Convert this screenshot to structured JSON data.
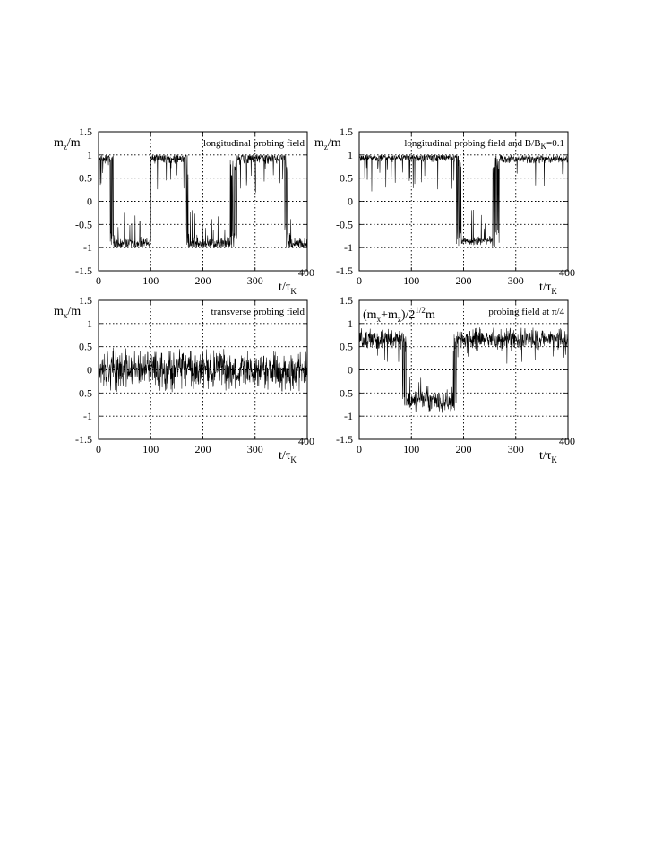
{
  "chart_data": [
    {
      "type": "line",
      "panel_label": "longitudinal probing field",
      "ylabel": {
        "main": "m",
        "sub": "z",
        "tail": "/m"
      },
      "xlabel": {
        "main": "t/τ",
        "sub": "K"
      },
      "xlim": [
        0,
        400
      ],
      "ylim": [
        -1.5,
        1.5
      ],
      "x_ticks": [
        0,
        100,
        200,
        300,
        400
      ],
      "y_ticks": [
        1.5,
        1,
        0.5,
        0,
        -0.5,
        -1,
        -1.5
      ],
      "x_tick_labels": [
        "0",
        "100",
        "200",
        "300",
        "400"
      ],
      "y_tick_labels": [
        "1.5",
        "1",
        "0.5",
        "0",
        "-0.5",
        "-1",
        "-1.5"
      ],
      "grid": true,
      "signal": {
        "kind": "telegraph",
        "segments": [
          [
            0,
            22,
            0.93
          ],
          [
            22,
            28,
            null
          ],
          [
            28,
            100,
            -0.92
          ],
          [
            100,
            101,
            null
          ],
          [
            101,
            166,
            0.93
          ],
          [
            166,
            173,
            null
          ],
          [
            173,
            252,
            -0.92
          ],
          [
            252,
            266,
            null
          ],
          [
            266,
            356,
            0.93
          ],
          [
            356,
            362,
            null
          ],
          [
            362,
            400,
            -0.92
          ]
        ],
        "noise": 0.1,
        "seed": 11
      }
    },
    {
      "type": "line",
      "panel_label": "longitudinal probing field and B/B",
      "panel_label_sub": "K",
      "panel_label_tail": "=0.1",
      "ylabel": {
        "main": "m",
        "sub": "z",
        "tail": "/m"
      },
      "xlabel": {
        "main": "t/τ",
        "sub": "K"
      },
      "xlim": [
        0,
        400
      ],
      "ylim": [
        -1.5,
        1.5
      ],
      "x_ticks": [
        0,
        100,
        200,
        300,
        400
      ],
      "y_ticks": [
        1.5,
        1,
        0.5,
        0,
        -0.5,
        -1,
        -1.5
      ],
      "x_tick_labels": [
        "0",
        "100",
        "200",
        "300",
        "400"
      ],
      "y_tick_labels": [
        "1.5",
        "1",
        "0.5",
        "0",
        "-0.5",
        "-1",
        "-1.5"
      ],
      "grid": true,
      "signal": {
        "kind": "telegraph",
        "segments": [
          [
            0,
            186,
            0.95
          ],
          [
            186,
            196,
            null
          ],
          [
            196,
            255,
            -0.85
          ],
          [
            255,
            268,
            null
          ],
          [
            268,
            400,
            0.92
          ]
        ],
        "noise": 0.07,
        "seed": 23
      }
    },
    {
      "type": "line",
      "panel_label": "transverse probing field",
      "ylabel": {
        "main": "m",
        "sub": "x",
        "tail": "/m"
      },
      "xlabel": {
        "main": "t/τ",
        "sub": "K"
      },
      "xlim": [
        0,
        400
      ],
      "ylim": [
        -1.5,
        1.5
      ],
      "x_ticks": [
        0,
        100,
        200,
        300,
        400
      ],
      "y_ticks": [
        1.5,
        1,
        0.5,
        0,
        -0.5,
        -1,
        -1.5
      ],
      "x_tick_labels": [
        "0",
        "100",
        "200",
        "300",
        "400"
      ],
      "y_tick_labels": [
        "1.5",
        "1",
        "0.5",
        "0",
        "-0.5",
        "-1",
        "-1.5"
      ],
      "grid": true,
      "signal": {
        "kind": "noise",
        "segments": [
          [
            0,
            400,
            0.0
          ]
        ],
        "noise": 0.32,
        "seed": 37
      }
    },
    {
      "type": "line",
      "panel_label": "probing field at π/4",
      "ylabel": {
        "main": "(m",
        "sub": "x",
        "mid": "+m",
        "sub2": "z",
        "tail": ")/2",
        "sup": "1/2",
        "end": "m"
      },
      "xlabel": {
        "main": "t/τ",
        "sub": "K"
      },
      "xlim": [
        0,
        400
      ],
      "ylim": [
        -1.5,
        1.5
      ],
      "x_ticks": [
        0,
        100,
        200,
        300,
        400
      ],
      "y_ticks": [
        1.5,
        1,
        0.5,
        0,
        -0.5,
        -1,
        -1.5
      ],
      "x_tick_labels": [
        "0",
        "100",
        "200",
        "300",
        "400"
      ],
      "y_tick_labels": [
        "1.5",
        "1",
        "0.5",
        "0",
        "-0.5",
        "-1",
        "-1.5"
      ],
      "grid": true,
      "signal": {
        "kind": "telegraph",
        "segments": [
          [
            0,
            82,
            0.68
          ],
          [
            82,
            90,
            null
          ],
          [
            90,
            180,
            -0.68
          ],
          [
            180,
            186,
            null
          ],
          [
            186,
            400,
            0.66
          ]
        ],
        "noise": 0.17,
        "seed": 51
      }
    }
  ]
}
